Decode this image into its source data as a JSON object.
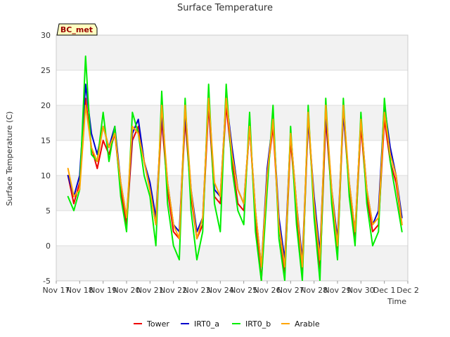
{
  "chart_data": {
    "type": "line",
    "title": "Surface Temperature",
    "xlabel": "Time",
    "ylabel": "Surface Temperature (C)",
    "badge": "BC_met",
    "ylim": [
      -5,
      30
    ],
    "yticks": [
      -5,
      0,
      5,
      10,
      15,
      20,
      25,
      30
    ],
    "xlim": [
      "2023-11-17",
      "2023-12-02"
    ],
    "xtick_labels": [
      "Nov 17",
      "Nov 18",
      "Nov 19",
      "Nov 20",
      "Nov 21",
      "Nov 22",
      "Nov 23",
      "Nov 24",
      "Nov 25",
      "Nov 26",
      "Nov 27",
      "Nov 28",
      "Nov 29",
      "Nov 30",
      "Dec 1",
      "Dec 2"
    ],
    "grid": true,
    "legend_position": "bottom",
    "x": [
      "2023-11-17 12:00",
      "2023-11-17 18:00",
      "2023-11-18 00:00",
      "2023-11-18 06:00",
      "2023-11-18 12:00",
      "2023-11-18 18:00",
      "2023-11-19 00:00",
      "2023-11-19 06:00",
      "2023-11-19 12:00",
      "2023-11-19 18:00",
      "2023-11-20 00:00",
      "2023-11-20 06:00",
      "2023-11-20 12:00",
      "2023-11-20 18:00",
      "2023-11-21 00:00",
      "2023-11-21 06:00",
      "2023-11-21 12:00",
      "2023-11-21 18:00",
      "2023-11-22 00:00",
      "2023-11-22 06:00",
      "2023-11-22 12:00",
      "2023-11-22 18:00",
      "2023-11-23 00:00",
      "2023-11-23 06:00",
      "2023-11-23 12:00",
      "2023-11-23 18:00",
      "2023-11-24 00:00",
      "2023-11-24 06:00",
      "2023-11-24 12:00",
      "2023-11-24 18:00",
      "2023-11-25 00:00",
      "2023-11-25 06:00",
      "2023-11-25 12:00",
      "2023-11-25 18:00",
      "2023-11-26 00:00",
      "2023-11-26 06:00",
      "2023-11-26 12:00",
      "2023-11-26 18:00",
      "2023-11-27 00:00",
      "2023-11-27 06:00",
      "2023-11-27 12:00",
      "2023-11-27 18:00",
      "2023-11-28 00:00",
      "2023-11-28 06:00",
      "2023-11-28 12:00",
      "2023-11-28 18:00",
      "2023-11-29 00:00",
      "2023-11-29 06:00",
      "2023-11-29 12:00",
      "2023-11-29 18:00",
      "2023-11-30 00:00",
      "2023-11-30 06:00",
      "2023-11-30 12:00",
      "2023-11-30 18:00",
      "2023-12-01 00:00",
      "2023-12-01 06:00",
      "2023-12-01 12:00",
      "2023-12-01 18:00"
    ],
    "series": [
      {
        "name": "Tower",
        "color": "#ee0000",
        "values": [
          10,
          6,
          9,
          21,
          14,
          11,
          15,
          13,
          16,
          8,
          3,
          15,
          17,
          12,
          8,
          3,
          18,
          8,
          2,
          1,
          18,
          7,
          1,
          3,
          20,
          7,
          6,
          20,
          12,
          6,
          5,
          17,
          4,
          -5,
          10,
          17,
          3,
          -4,
          15,
          5,
          -4,
          18,
          6,
          -4,
          18,
          7,
          -1,
          19,
          8,
          1,
          17,
          7,
          2,
          3,
          18,
          12,
          9,
          3
        ]
      },
      {
        "name": "IRT0_a",
        "color": "#0000cc",
        "values": [
          10,
          7,
          10,
          23,
          16,
          13,
          17,
          14,
          17,
          9,
          4,
          16,
          18,
          12,
          9,
          4,
          19,
          9,
          3,
          2,
          19,
          8,
          2,
          4,
          21,
          8,
          7,
          21,
          14,
          8,
          6,
          17,
          5,
          -3,
          11,
          18,
          4,
          -2,
          16,
          6,
          -2,
          18,
          7,
          -1,
          19,
          8,
          1,
          19,
          9,
          2,
          18,
          8,
          3,
          5,
          20,
          14,
          10,
          4
        ]
      },
      {
        "name": "IRT0_b",
        "color": "#00ee00",
        "values": [
          7,
          5,
          8,
          27,
          13,
          12,
          19,
          12,
          17,
          7,
          2,
          19,
          16,
          10,
          7,
          0,
          22,
          6,
          0,
          -2,
          21,
          5,
          -2,
          2,
          23,
          6,
          2,
          23,
          11,
          5,
          3,
          19,
          2,
          -5,
          8,
          20,
          1,
          -5,
          17,
          3,
          -5,
          20,
          4,
          -5,
          21,
          6,
          -2,
          21,
          7,
          0,
          19,
          6,
          0,
          2,
          21,
          12,
          7,
          2
        ]
      },
      {
        "name": "Arable",
        "color": "#ffa500",
        "values": [
          11,
          7,
          8,
          20,
          14,
          12,
          17,
          14,
          16,
          9,
          4,
          17,
          16,
          12,
          8,
          3,
          20,
          9,
          3,
          1,
          20,
          8,
          1,
          4,
          21,
          9,
          7,
          21,
          13,
          8,
          6,
          17,
          5,
          -3,
          10,
          18,
          3,
          -3,
          16,
          6,
          -3,
          19,
          6,
          -2,
          20,
          8,
          0,
          20,
          9,
          2,
          18,
          8,
          3,
          4,
          19,
          13,
          10,
          3
        ]
      }
    ]
  }
}
